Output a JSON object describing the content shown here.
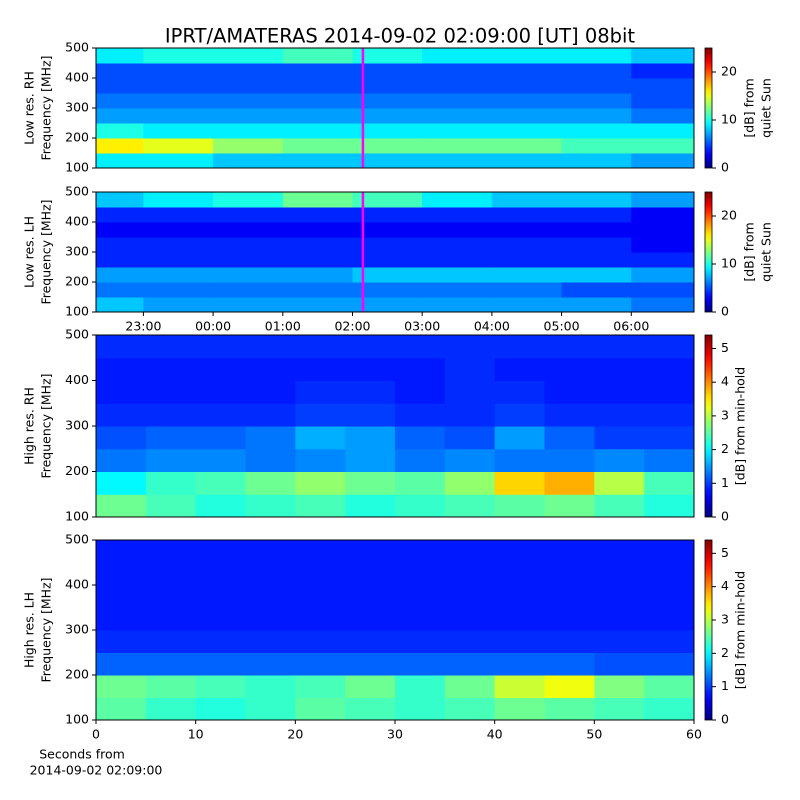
{
  "chart_data": [
    {
      "type": "heatmap",
      "title": "IPRT/AMATERAS 2014-09-02 02:09:00 [UT]   08bit",
      "ylabel": [
        "Low res. RH",
        "Frequency [MHz]"
      ],
      "colormap": "jet",
      "xlim": [
        22.32,
        30.9
      ],
      "ylim": [
        100,
        500
      ],
      "yticks": [
        100,
        200,
        300,
        400,
        500
      ],
      "xbins": [
        22.32,
        23,
        24,
        25,
        26,
        27,
        28,
        29,
        30,
        30.9
      ],
      "ybins": [
        100,
        150,
        200,
        250,
        300,
        350,
        400,
        450,
        500
      ],
      "z": [
        [
          9,
          9,
          8,
          8,
          8,
          8,
          8,
          8,
          7
        ],
        [
          16,
          15,
          13,
          12,
          12,
          12,
          12,
          11,
          11
        ],
        [
          10,
          9,
          9,
          9,
          9,
          9,
          9,
          9,
          9
        ],
        [
          7,
          7,
          7,
          7,
          7,
          7,
          7,
          7,
          6
        ],
        [
          6,
          6,
          6,
          6,
          6,
          6,
          6,
          6,
          5
        ],
        [
          5,
          5,
          5,
          5,
          5,
          5,
          5,
          5,
          5
        ],
        [
          5,
          5,
          5,
          5,
          5,
          5,
          5,
          5,
          4
        ],
        [
          9,
          10,
          10,
          11,
          10,
          9,
          9,
          9,
          8
        ]
      ],
      "marker": {
        "x": 26.15,
        "color": "#ff00ff"
      },
      "colorbar": {
        "label": [
          "[dB] from",
          "quiet Sun"
        ],
        "lim": [
          0,
          25
        ],
        "ticks": [
          0,
          10,
          20
        ]
      }
    },
    {
      "type": "heatmap",
      "ylabel": [
        "Low res. LH",
        "Frequency [MHz]"
      ],
      "colormap": "jet",
      "xlim": [
        22.32,
        30.9
      ],
      "ylim": [
        100,
        500
      ],
      "yticks": [
        100,
        200,
        300,
        400,
        500
      ],
      "xticks": [
        {
          "value": 23,
          "label": "23:00"
        },
        {
          "value": 24,
          "label": "00:00"
        },
        {
          "value": 25,
          "label": "01:00"
        },
        {
          "value": 26,
          "label": "02:00"
        },
        {
          "value": 27,
          "label": "03:00"
        },
        {
          "value": 28,
          "label": "04:00"
        },
        {
          "value": 29,
          "label": "05:00"
        },
        {
          "value": 30,
          "label": "06:00"
        }
      ],
      "xbins": [
        22.32,
        23,
        24,
        25,
        26,
        27,
        28,
        29,
        30,
        30.9
      ],
      "ybins": [
        100,
        150,
        200,
        250,
        300,
        350,
        400,
        450,
        500
      ],
      "z": [
        [
          8,
          7,
          7,
          7,
          7,
          7,
          7,
          7,
          6
        ],
        [
          6,
          6,
          6,
          6,
          6,
          6,
          6,
          5,
          5
        ],
        [
          7,
          7,
          7,
          7,
          8,
          8,
          8,
          8,
          7
        ],
        [
          4,
          4,
          4,
          4,
          4,
          4,
          4,
          4,
          4
        ],
        [
          4,
          4,
          4,
          4,
          4,
          4,
          4,
          4,
          3
        ],
        [
          3,
          3,
          3,
          3,
          3,
          3,
          3,
          3,
          3
        ],
        [
          4,
          4,
          4,
          4,
          4,
          4,
          4,
          4,
          3
        ],
        [
          8,
          9,
          10,
          12,
          11,
          9,
          8,
          8,
          7
        ]
      ],
      "marker": {
        "x": 26.15,
        "color": "#ff00ff"
      },
      "colorbar": {
        "label": [
          "[dB] from",
          "quiet Sun"
        ],
        "lim": [
          0,
          25
        ],
        "ticks": [
          0,
          10,
          20
        ]
      }
    },
    {
      "type": "heatmap",
      "ylabel": [
        "High res. RH",
        "Frequency [MHz]"
      ],
      "colormap": "jet",
      "xlim": [
        0,
        60
      ],
      "ylim": [
        100,
        500
      ],
      "yticks": [
        100,
        200,
        300,
        400,
        500
      ],
      "xbins": [
        0,
        5,
        10,
        15,
        20,
        25,
        30,
        35,
        40,
        45,
        50,
        55,
        60
      ],
      "ybins": [
        100,
        150,
        200,
        250,
        300,
        350,
        400,
        450,
        500
      ],
      "z": [
        [
          2.6,
          2.4,
          2.2,
          2.3,
          2.4,
          2.2,
          2.3,
          2.4,
          2.5,
          2.6,
          2.4,
          2.2
        ],
        [
          2.0,
          2.3,
          2.4,
          2.6,
          2.8,
          2.6,
          2.5,
          2.8,
          3.6,
          3.8,
          3.0,
          2.4
        ],
        [
          1.3,
          1.4,
          1.4,
          1.3,
          1.4,
          1.5,
          1.3,
          1.4,
          1.3,
          1.3,
          1.4,
          1.3
        ],
        [
          1.1,
          1.2,
          1.2,
          1.3,
          1.6,
          1.5,
          1.2,
          1.1,
          1.5,
          1.2,
          1.0,
          1.0
        ],
        [
          0.9,
          0.9,
          0.9,
          0.9,
          1.0,
          1.0,
          0.9,
          0.9,
          1.0,
          0.9,
          0.9,
          0.9
        ],
        [
          0.8,
          0.8,
          0.8,
          0.8,
          0.9,
          0.9,
          0.8,
          0.9,
          0.9,
          0.8,
          0.8,
          0.8
        ],
        [
          0.8,
          0.8,
          0.8,
          0.8,
          0.8,
          0.8,
          0.8,
          0.9,
          0.8,
          0.8,
          0.8,
          0.8
        ],
        [
          0.9,
          0.9,
          0.9,
          0.9,
          0.9,
          0.9,
          0.9,
          0.9,
          0.9,
          0.9,
          0.9,
          0.9
        ]
      ],
      "colorbar": {
        "label": [
          "[dB] from min-hold"
        ],
        "lim": [
          0,
          5.4
        ],
        "ticks": [
          0,
          1,
          2,
          3,
          4,
          5
        ]
      }
    },
    {
      "type": "heatmap",
      "ylabel": [
        "High res. LH",
        "Frequency [MHz]"
      ],
      "colormap": "jet",
      "xlabel": [
        "Seconds from",
        "2014-09-02 02:09:00"
      ],
      "xlim": [
        0,
        60
      ],
      "ylim": [
        100,
        500
      ],
      "yticks": [
        100,
        200,
        300,
        400,
        500
      ],
      "xticks": [
        0,
        10,
        20,
        30,
        40,
        50,
        60
      ],
      "xbins": [
        0,
        5,
        10,
        15,
        20,
        25,
        30,
        35,
        40,
        45,
        50,
        55,
        60
      ],
      "ybins": [
        100,
        150,
        200,
        250,
        300,
        350,
        400,
        450,
        500
      ],
      "z": [
        [
          2.5,
          2.3,
          2.2,
          2.3,
          2.5,
          2.4,
          2.3,
          2.4,
          2.6,
          2.5,
          2.4,
          2.3
        ],
        [
          2.6,
          2.5,
          2.4,
          2.3,
          2.4,
          2.6,
          2.3,
          2.6,
          3.1,
          3.3,
          2.7,
          2.5
        ],
        [
          1.2,
          1.2,
          1.2,
          1.2,
          1.2,
          1.2,
          1.2,
          1.2,
          1.2,
          1.2,
          1.1,
          1.1
        ],
        [
          0.9,
          0.9,
          0.9,
          0.9,
          0.9,
          0.9,
          0.9,
          0.9,
          0.9,
          0.9,
          0.9,
          0.9
        ],
        [
          0.8,
          0.8,
          0.8,
          0.8,
          0.8,
          0.8,
          0.8,
          0.8,
          0.8,
          0.8,
          0.8,
          0.8
        ],
        [
          0.8,
          0.8,
          0.8,
          0.8,
          0.8,
          0.8,
          0.8,
          0.8,
          0.8,
          0.8,
          0.8,
          0.8
        ],
        [
          0.8,
          0.8,
          0.8,
          0.8,
          0.8,
          0.8,
          0.8,
          0.8,
          0.8,
          0.8,
          0.8,
          0.8
        ],
        [
          0.8,
          0.8,
          0.8,
          0.8,
          0.8,
          0.8,
          0.8,
          0.8,
          0.8,
          0.8,
          0.8,
          0.8
        ]
      ],
      "colorbar": {
        "label": [
          "[dB] from min-hold"
        ],
        "lim": [
          0,
          5.4
        ],
        "ticks": [
          0,
          1,
          2,
          3,
          4,
          5
        ]
      }
    }
  ]
}
